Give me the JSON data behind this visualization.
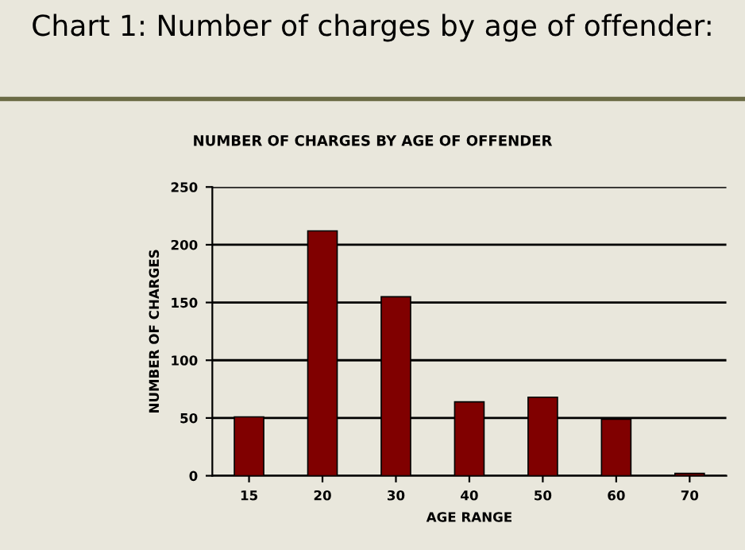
{
  "chart_data": {
    "type": "bar",
    "title": "Chart 1: Number of charges by age of offender:",
    "subtitle": "NUMBER OF CHARGES BY AGE OF OFFENDER",
    "xlabel": "AGE RANGE",
    "ylabel": "NUMBER OF CHARGES",
    "categories": [
      "15",
      "20",
      "30",
      "40",
      "50",
      "60",
      "70"
    ],
    "values": [
      51,
      212,
      155,
      64,
      68,
      49,
      2
    ],
    "color": "#800000",
    "ylim": [
      0,
      250
    ],
    "yticks": [
      0,
      50,
      100,
      150,
      200,
      250
    ],
    "grid": "y",
    "legend": false
  }
}
